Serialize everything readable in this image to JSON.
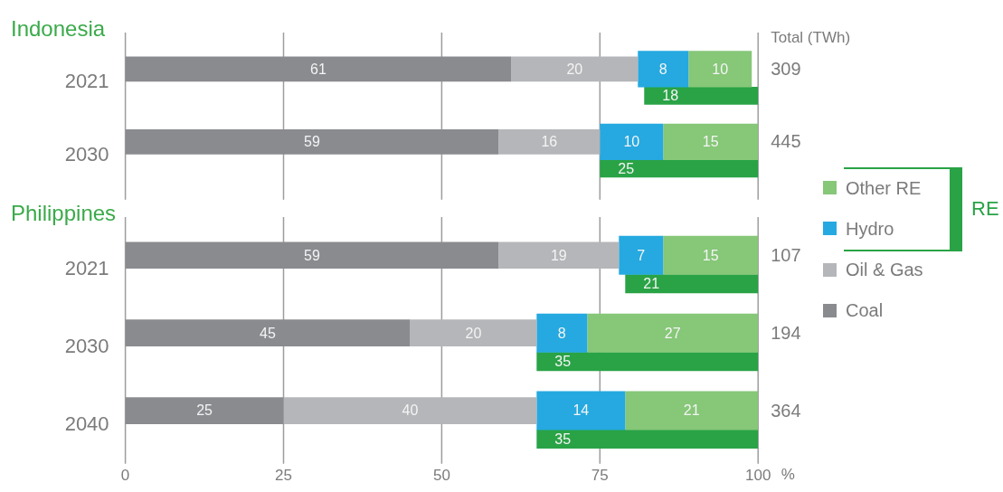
{
  "chart_data": [
    {
      "type": "bar",
      "title": "Indonesia",
      "orientation": "horizontal",
      "categories": [
        "2021",
        "2030"
      ],
      "series": [
        {
          "color": "#8a8b8f",
          "values": [
            61,
            59
          ],
          "base": [
            0,
            0
          ]
        },
        {
          "color": "#b5b6b9",
          "values": [
            20,
            16
          ],
          "base": [
            61,
            59
          ]
        },
        {
          "color": "#25a9e0",
          "values": [
            8,
            10
          ],
          "base": [
            81,
            75
          ]
        },
        {
          "color": "#86c778",
          "values": [
            10,
            15
          ],
          "base": [
            89,
            85
          ]
        },
        {
          "color": "#29a346",
          "values": [
            18,
            25
          ],
          "base": [
            82,
            75
          ]
        }
      ],
      "xlim": [
        0,
        100
      ],
      "xticks": [
        0,
        25,
        50,
        75,
        100
      ],
      "grid": "x",
      "tick_labels": "y",
      "data_labels": true,
      "annotations": [
        "Total (TWh)",
        "309",
        "445"
      ]
    },
    {
      "type": "bar",
      "title": "Philippines",
      "orientation": "horizontal",
      "categories": [
        "2021",
        "2030",
        "2040"
      ],
      "series": [
        {
          "name": "Coal",
          "color": "#8a8b8f",
          "values": [
            59,
            45,
            25
          ],
          "base": [
            0,
            0,
            0
          ]
        },
        {
          "name": "Oil & Gas",
          "color": "#b5b6b9",
          "values": [
            19,
            20,
            40
          ],
          "base": [
            59,
            45,
            25
          ]
        },
        {
          "name": "Hydro",
          "color": "#25a9e0",
          "values": [
            7,
            8,
            14
          ],
          "base": [
            78,
            65,
            65
          ]
        },
        {
          "name": "Other RE",
          "color": "#86c778",
          "values": [
            15,
            27,
            21
          ],
          "base": [
            85,
            73,
            79
          ]
        },
        {
          "name": "RE",
          "color": "#29a346",
          "values": [
            21,
            35,
            35
          ],
          "base": [
            79,
            65,
            65
          ]
        }
      ],
      "xlim": [
        0,
        100
      ],
      "xticks": [
        0,
        25,
        50,
        75,
        100
      ],
      "xlabel": "%",
      "grid": "x",
      "legend": "right",
      "data_labels": true,
      "annotations": [
        "107",
        "194",
        "364"
      ]
    }
  ]
}
